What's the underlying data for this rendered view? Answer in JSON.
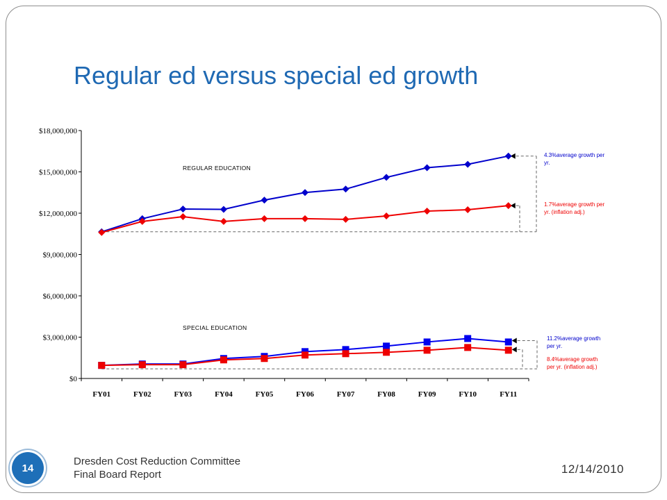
{
  "slide": {
    "title": "Regular ed versus special ed growth",
    "slide_number": "14",
    "footer_line1": "Dresden Cost Reduction Committee",
    "footer_line2": "Final Board Report",
    "date": "12/14/2010"
  },
  "chart_data": {
    "type": "line",
    "categories": [
      "FY01",
      "FY02",
      "FY03",
      "FY04",
      "FY05",
      "FY06",
      "FY07",
      "FY08",
      "FY09",
      "FY10",
      "FY11"
    ],
    "ylim": [
      0,
      18000000
    ],
    "yticks": [
      0,
      3000000,
      6000000,
      9000000,
      12000000,
      15000000,
      18000000
    ],
    "ytick_labels": [
      "$0",
      "$3,000,000",
      "$6,000,000",
      "$9,000,000",
      "$12,000,000",
      "$15,000,000",
      "$18,000,000"
    ],
    "grid": false,
    "sections": [
      {
        "label": "REGULAR EDUCATION"
      },
      {
        "label": "SPECIAL EDUCATION"
      }
    ],
    "series": [
      {
        "group": "regular",
        "color": "#0000cc",
        "marker": "diamond",
        "values": [
          10650000,
          11600000,
          12300000,
          12280000,
          12950000,
          13500000,
          13750000,
          14600000,
          15300000,
          15550000,
          16150000
        ]
      },
      {
        "group": "regular",
        "color": "#ee0000",
        "marker": "diamond",
        "values": [
          10600000,
          11400000,
          11750000,
          11400000,
          11600000,
          11600000,
          11550000,
          11800000,
          12150000,
          12250000,
          12550000
        ]
      },
      {
        "group": "special",
        "color": "#0000ee",
        "marker": "square",
        "values": [
          950000,
          1050000,
          1050000,
          1450000,
          1600000,
          1950000,
          2100000,
          2350000,
          2650000,
          2900000,
          2650000
        ]
      },
      {
        "group": "special",
        "color": "#ee0000",
        "marker": "square",
        "values": [
          950000,
          1000000,
          1000000,
          1350000,
          1450000,
          1700000,
          1800000,
          1900000,
          2050000,
          2250000,
          2050000
        ]
      }
    ],
    "annotations": [
      {
        "text": [
          "4.3%average growth per",
          "yr."
        ],
        "color": "#0000cc"
      },
      {
        "text": [
          "1.7%average growth per",
          "yr. (inflation adj.)"
        ],
        "color": "#ee0000"
      },
      {
        "text": [
          "11.2%average growth",
          "per yr."
        ],
        "color": "#0000cc"
      },
      {
        "text": [
          "8.4%average growth",
          "per yr. (inflation adj.)"
        ],
        "color": "#ee0000"
      }
    ]
  }
}
